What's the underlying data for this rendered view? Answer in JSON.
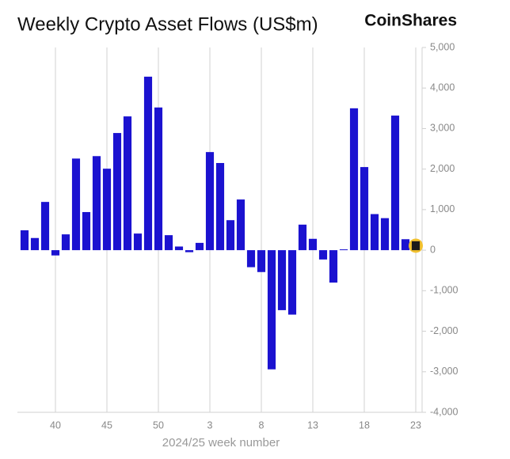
{
  "chart_data": {
    "type": "bar",
    "title": "Weekly Crypto Asset Flows (US$m)",
    "brand": "CoinShares",
    "x_label": "2024/25 week number",
    "categories": [
      null,
      null,
      null,
      "40",
      null,
      null,
      null,
      null,
      "45",
      null,
      null,
      null,
      null,
      "50",
      null,
      null,
      null,
      null,
      "3",
      null,
      null,
      null,
      null,
      "8",
      null,
      null,
      null,
      null,
      "13",
      null,
      null,
      null,
      null,
      "18",
      null,
      null,
      null,
      null,
      "23"
    ],
    "values": [
      490,
      300,
      1190,
      -130,
      390,
      2260,
      940,
      2320,
      2010,
      2890,
      3300,
      410,
      4280,
      3520,
      370,
      90,
      -50,
      180,
      2420,
      2150,
      740,
      1250,
      -420,
      -540,
      -2940,
      -1480,
      -1590,
      630,
      280,
      -230,
      -800,
      20,
      3500,
      2050,
      890,
      790,
      3320,
      270,
      220
    ],
    "color": "#1b12d0",
    "highlight": {
      "index": 38,
      "color": "#1a1a1a",
      "ring": "#f2c12e"
    },
    "ylim": [
      -4000,
      5000
    ],
    "yticks": [
      {
        "value": -4000,
        "label": "-4,000"
      },
      {
        "value": -3000,
        "label": "-3,000"
      },
      {
        "value": -2000,
        "label": "-2,000"
      },
      {
        "value": -1000,
        "label": "-1,000"
      },
      0,
      {
        "value": 1000,
        "label": "1,000"
      },
      {
        "value": 2000,
        "label": "2,000"
      },
      {
        "value": 3000,
        "label": "3,000"
      },
      {
        "value": 4000,
        "label": "4,000"
      },
      {
        "value": 5000,
        "label": "5,000"
      }
    ],
    "grid": "x"
  }
}
